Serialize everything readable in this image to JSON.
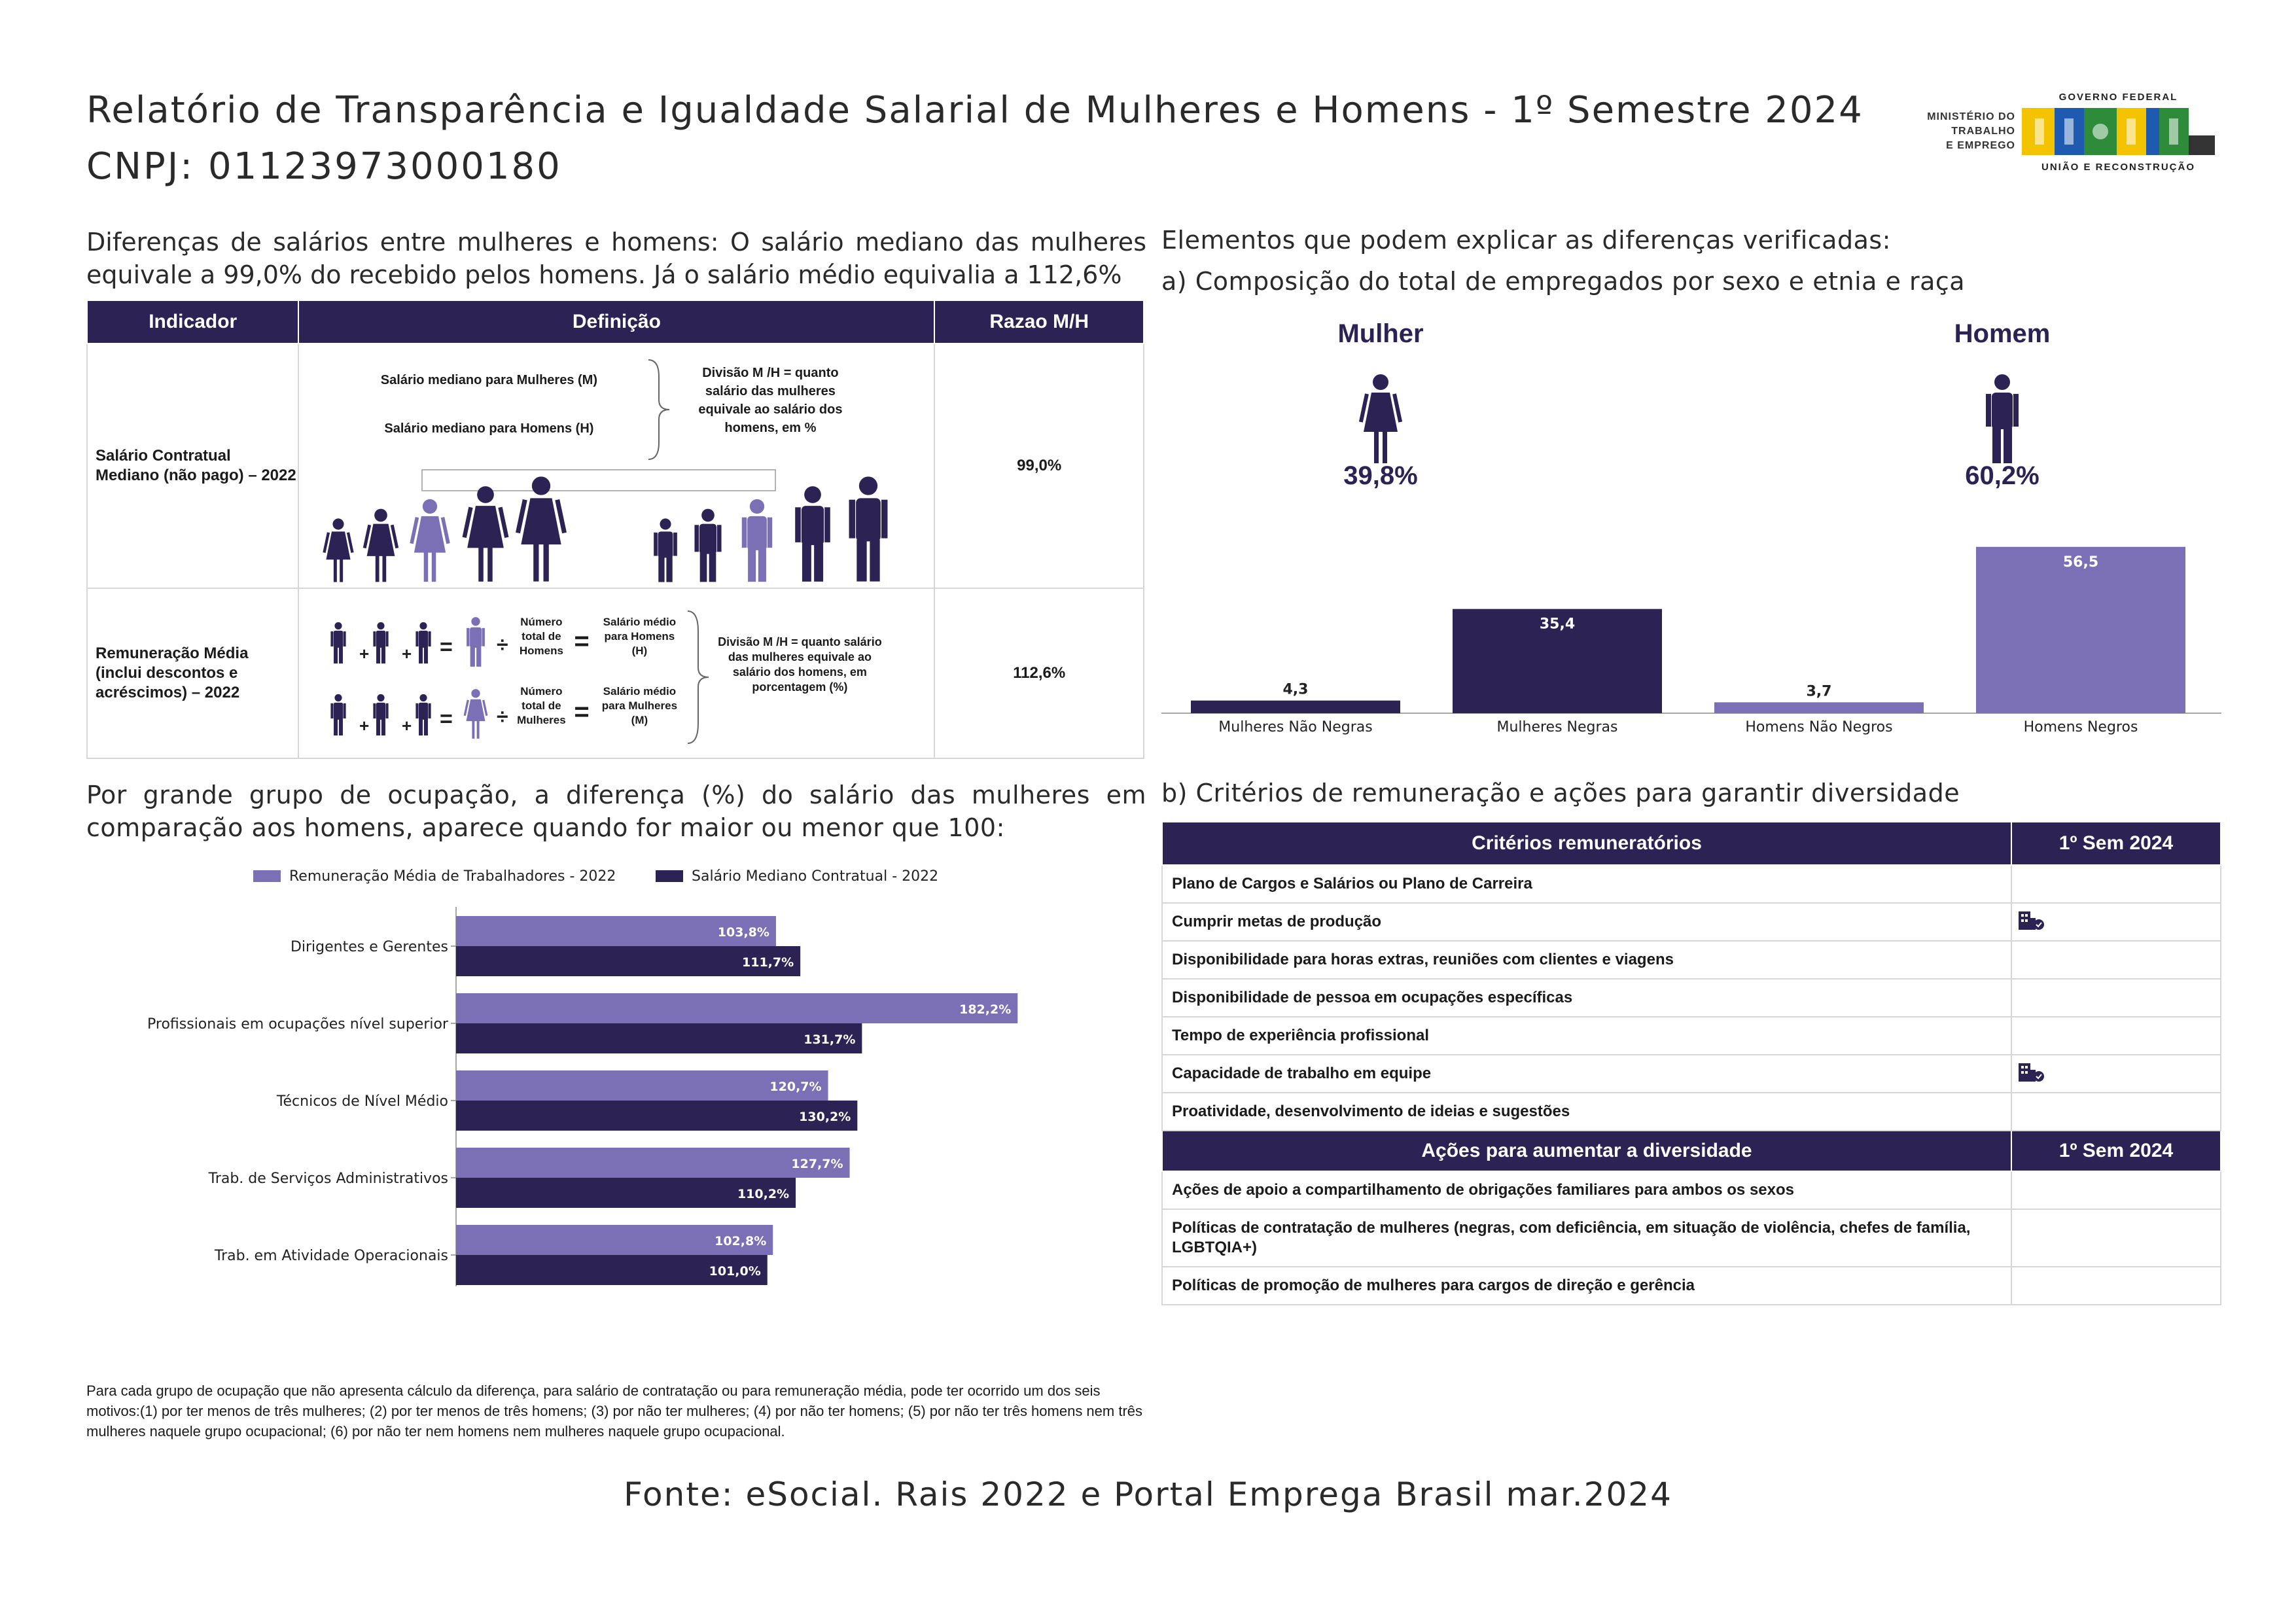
{
  "header": {
    "title": "Relatório de Transparência e Igualdade Salarial de Mulheres e Homens - 1º Semestre 2024",
    "cnpj": "CNPJ: 01123973000180",
    "ministry": [
      "MINISTÉRIO DO",
      "TRABALHO",
      "E EMPREGO"
    ],
    "gov_top": "GOVERNO FEDERAL",
    "gov_word": "BRASIL",
    "gov_bottom": "UNIÃO E RECONSTRUÇÃO"
  },
  "intro_text": "Diferenças de salários entre mulheres e homens: O salário mediano das mulheres equivale a 99,0% do recebido pelos homens. Já o salário médio equivalia a 112,6%",
  "indicator_table": {
    "headers": [
      "Indicador",
      "Definição",
      "Razao M/H"
    ],
    "row1": {
      "indicator": "Salário Contratual Mediano (não pago) – 2022",
      "def_women": "Salário mediano para Mulheres (M)",
      "def_men": "Salário mediano para Homens (H)",
      "def_note": "Divisão M /H = quanto salário das mulheres equivale ao salário dos homens, em %",
      "value": "99,0%"
    },
    "row2": {
      "indicator": "Remuneração Média (inclui descontos e acréscimos) – 2022",
      "num_men": "Número total de Homens",
      "num_women": "Número total de Mulheres",
      "avg_men": "Salário médio para Homens (H)",
      "avg_women": "Salário médio para Mulheres (M)",
      "def_note": "Divisão M /H = quanto salário das mulheres equivale ao salário dos homens, em porcentagem (%)",
      "value": "112,6%"
    }
  },
  "occupation_section": {
    "title": "Por grande grupo de ocupação, a diferença (%) do salário das mulheres em comparação aos homens, aparece quando for maior ou menor que 100:",
    "footnote": "Para cada grupo de ocupação que não apresenta cálculo da diferença, para salário de contratação ou para remuneração média, pode ter ocorrido um dos seis motivos:(1) por ter menos de três mulheres; (2) por ter menos de três homens; (3) por não ter mulheres; (4) por não ter homens; (5) por não ter três homens nem três mulheres naquele grupo ocupacional; (6) por não ter nem homens nem mulheres naquele grupo ocupacional."
  },
  "right_section": {
    "title": "Elementos que podem explicar as diferenças verificadas:",
    "sub_a": "a) Composição do total de empregados por sexo e etnia e raça",
    "women_label": "Mulher",
    "women_pct": "39,8%",
    "men_label": "Homem",
    "men_pct": "60,2%",
    "sub_b": "b) Critérios de remuneração e ações para garantir diversidade"
  },
  "criteria_table": {
    "header1": "Critérios remuneratórios",
    "header_sem": "1º Sem 2024",
    "criteria": [
      {
        "label": "Plano de Cargos e Salários ou Plano de Carreira",
        "check": false
      },
      {
        "label": "Cumprir metas de produção",
        "check": true
      },
      {
        "label": "Disponibilidade para horas extras, reuniões com clientes e viagens",
        "check": false
      },
      {
        "label": "Disponibilidade de pessoa em ocupações específicas",
        "check": false
      },
      {
        "label": "Tempo de experiência profissional",
        "check": false
      },
      {
        "label": "Capacidade de trabalho em equipe",
        "check": true
      },
      {
        "label": "Proatividade, desenvolvimento de ideias e sugestões",
        "check": false
      }
    ],
    "header2": "Ações para aumentar a diversidade",
    "actions": [
      {
        "label": "Ações de apoio a compartilhamento de obrigações familiares para ambos os sexos",
        "check": false
      },
      {
        "label": "Políticas de contratação de mulheres (negras, com deficiência, em situação de violência, chefes de família, LGBTQIA+)",
        "check": false
      },
      {
        "label": "Políticas de promoção de mulheres para cargos de direção e gerência",
        "check": false
      }
    ]
  },
  "fonte": "Fonte: eSocial. Rais 2022 e Portal Emprega Brasil mar.2024",
  "colors": {
    "dark": "#2d2254",
    "light": "#7b6fb6",
    "border": "#d7d7d7"
  },
  "chart_data": [
    {
      "type": "bar",
      "orientation": "horizontal",
      "categories": [
        "Dirigentes e Gerentes",
        "Profissionais em ocupações nível superior",
        "Técnicos de Nível Médio",
        "Trab. de Serviços Administrativos",
        "Trab. em Atividade Operacionais"
      ],
      "series": [
        {
          "name": "Remuneração Média de Trabalhadores - 2022",
          "values": [
            103.8,
            182.2,
            120.7,
            127.7,
            102.8
          ],
          "labels": [
            "103,8%",
            "182,2%",
            "120,7%",
            "127,7%",
            "102,8%"
          ],
          "color": "#7b6fb6"
        },
        {
          "name": "Salário Mediano Contratual - 2022",
          "values": [
            111.7,
            131.7,
            130.2,
            110.2,
            101.0
          ],
          "labels": [
            "111,7%",
            "131,7%",
            "130,2%",
            "110,2%",
            "101,0%"
          ],
          "color": "#2d2254"
        }
      ],
      "xlim": [
        0,
        190
      ],
      "legend": "top"
    },
    {
      "type": "bar",
      "categories": [
        "Mulheres Não Negras",
        "Mulheres Negras",
        "Homens Não Negros",
        "Homens Negros"
      ],
      "values": [
        4.3,
        35.4,
        3.7,
        56.5
      ],
      "labels": [
        "4,3",
        "35,4",
        "3,7",
        "56,5"
      ],
      "colors": [
        "#2d2254",
        "#2d2254",
        "#7b6fb6",
        "#7b6fb6"
      ],
      "ylim": [
        0,
        60
      ]
    }
  ]
}
